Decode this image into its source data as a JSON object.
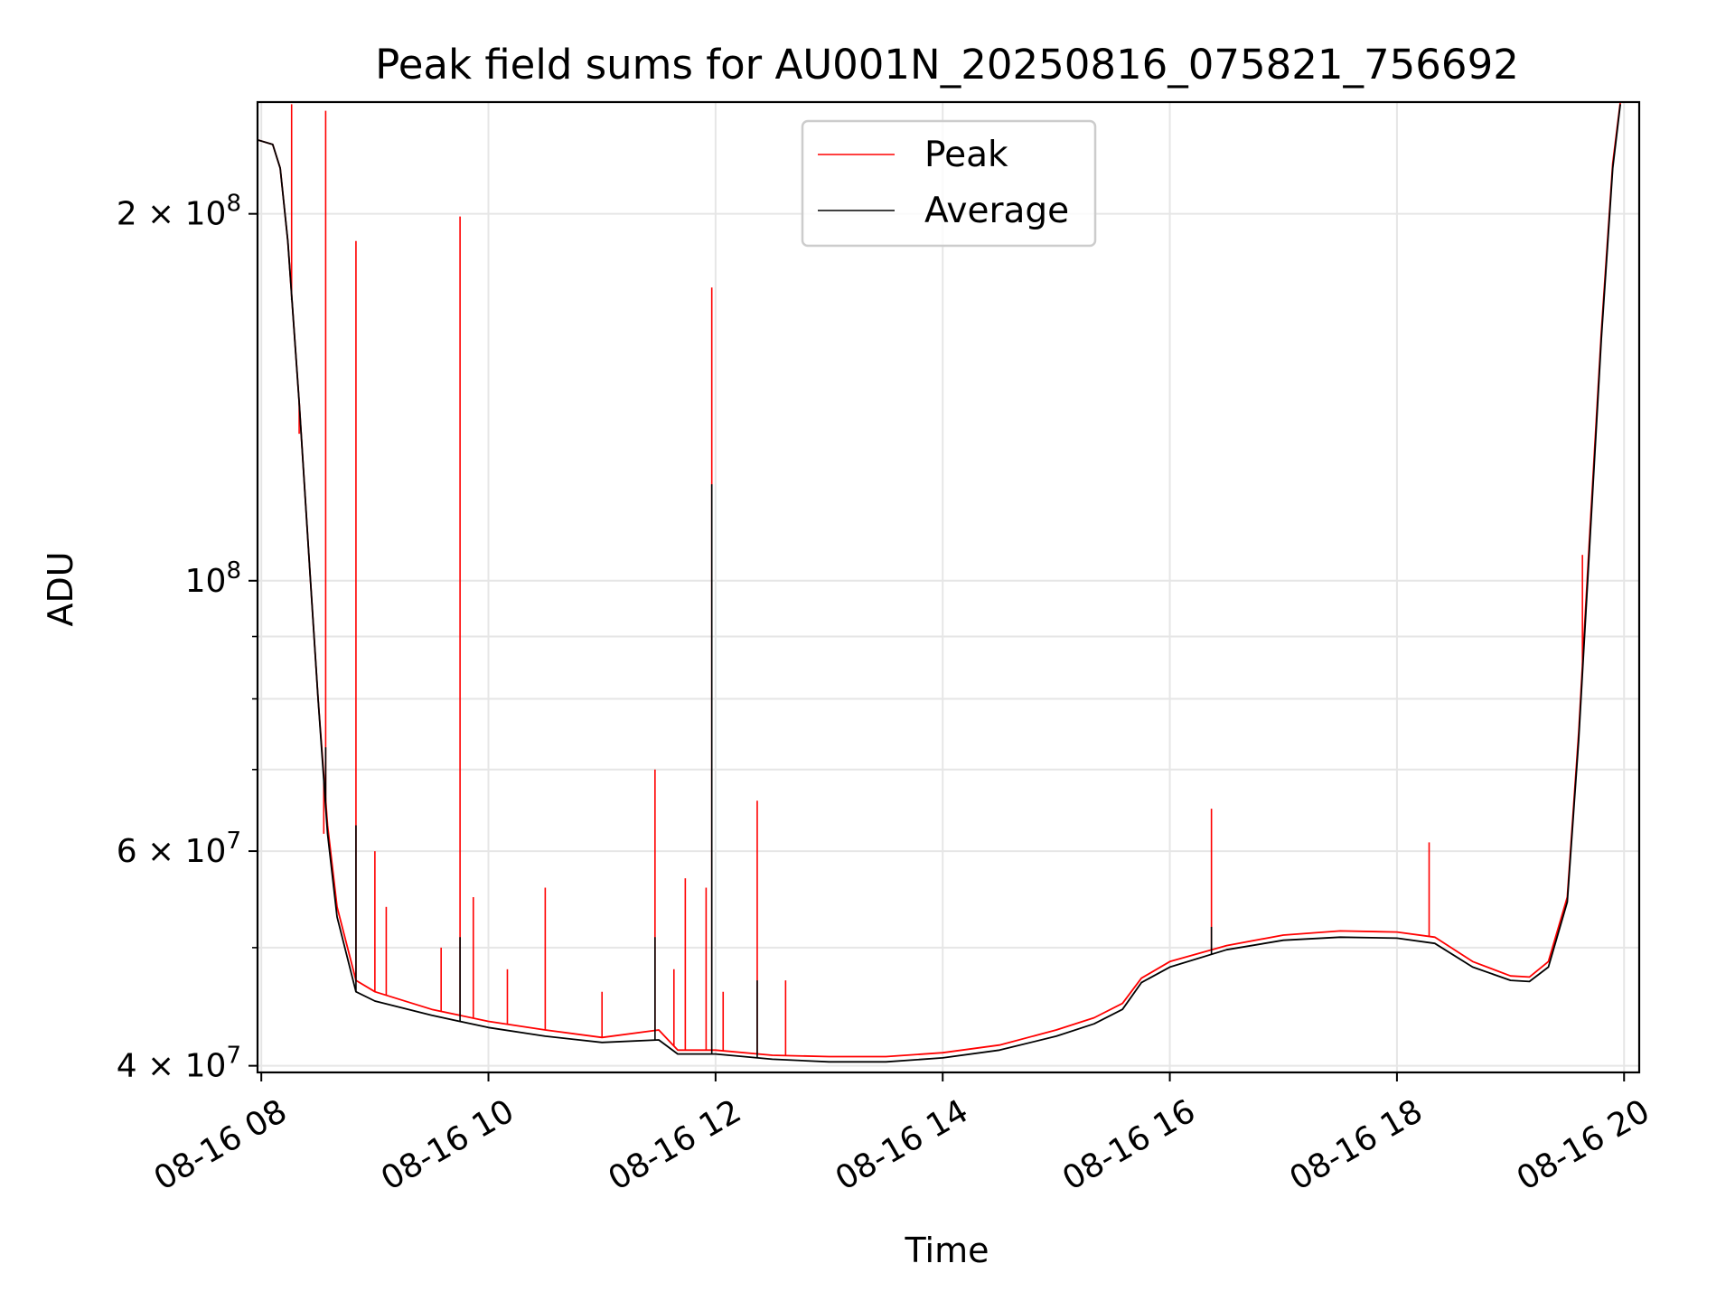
{
  "chart_data": {
    "type": "line",
    "title": "Peak field sums for AU001N_20250816_075821_756692",
    "xlabel": "Time",
    "ylabel": "ADU",
    "x_scale": "time",
    "y_scale": "log",
    "xlim": [
      "2025-08-16 07:58",
      "2025-08-16 20:08"
    ],
    "ylim": [
      39500000,
      247000000
    ],
    "grid": true,
    "legend_position": "top-center",
    "x_ticks": [
      {
        "value": "2025-08-16 08:00",
        "label": "08-16 08"
      },
      {
        "value": "2025-08-16 10:00",
        "label": "08-16 10"
      },
      {
        "value": "2025-08-16 12:00",
        "label": "08-16 12"
      },
      {
        "value": "2025-08-16 14:00",
        "label": "08-16 14"
      },
      {
        "value": "2025-08-16 16:00",
        "label": "08-16 16"
      },
      {
        "value": "2025-08-16 18:00",
        "label": "08-16 18"
      },
      {
        "value": "2025-08-16 20:00",
        "label": "08-16 20"
      }
    ],
    "y_ticks": [
      {
        "value": 40000000,
        "base": "4 × 10",
        "exp": "7"
      },
      {
        "value": 60000000,
        "base": "6 × 10",
        "exp": "7"
      },
      {
        "value": 100000000,
        "base": "10",
        "exp": "8"
      },
      {
        "value": 200000000,
        "base": "2 × 10",
        "exp": "8"
      }
    ],
    "y_minor_ticks": [
      50000000,
      70000000,
      80000000,
      90000000
    ],
    "series": [
      {
        "name": "Peak",
        "color": "#ff0000",
        "points": [
          [
            "2025-08-16 07:58",
            230000000
          ],
          [
            "2025-08-16 08:06",
            228000000
          ],
          [
            "2025-08-16 08:10",
            218000000
          ],
          [
            "2025-08-16 08:14",
            190000000
          ],
          [
            "2025-08-16 08:20",
            140000000
          ],
          [
            "2025-08-16 08:26",
            100000000
          ],
          [
            "2025-08-16 08:30",
            80000000
          ],
          [
            "2025-08-16 08:35",
            63000000
          ],
          [
            "2025-08-16 08:40",
            54000000
          ],
          [
            "2025-08-16 08:50",
            47000000
          ],
          [
            "2025-08-16 09:00",
            46000000
          ],
          [
            "2025-08-16 09:30",
            44500000
          ],
          [
            "2025-08-16 10:00",
            43500000
          ],
          [
            "2025-08-16 10:30",
            42800000
          ],
          [
            "2025-08-16 11:00",
            42200000
          ],
          [
            "2025-08-16 11:30",
            42800000
          ],
          [
            "2025-08-16 11:40",
            41200000
          ],
          [
            "2025-08-16 12:00",
            41200000
          ],
          [
            "2025-08-16 12:30",
            40800000
          ],
          [
            "2025-08-16 13:00",
            40700000
          ],
          [
            "2025-08-16 13:30",
            40700000
          ],
          [
            "2025-08-16 14:00",
            41000000
          ],
          [
            "2025-08-16 14:30",
            41600000
          ],
          [
            "2025-08-16 15:00",
            42800000
          ],
          [
            "2025-08-16 15:20",
            43800000
          ],
          [
            "2025-08-16 15:35",
            45000000
          ],
          [
            "2025-08-16 15:45",
            47200000
          ],
          [
            "2025-08-16 16:00",
            48700000
          ],
          [
            "2025-08-16 16:30",
            50200000
          ],
          [
            "2025-08-16 17:00",
            51200000
          ],
          [
            "2025-08-16 17:30",
            51600000
          ],
          [
            "2025-08-16 18:00",
            51500000
          ],
          [
            "2025-08-16 18:20",
            51000000
          ],
          [
            "2025-08-16 18:40",
            48700000
          ],
          [
            "2025-08-16 19:00",
            47400000
          ],
          [
            "2025-08-16 19:10",
            47300000
          ],
          [
            "2025-08-16 19:20",
            48700000
          ],
          [
            "2025-08-16 19:30",
            55000000
          ],
          [
            "2025-08-16 19:36",
            75000000
          ],
          [
            "2025-08-16 19:42",
            110000000
          ],
          [
            "2025-08-16 19:48",
            160000000
          ],
          [
            "2025-08-16 19:54",
            220000000
          ],
          [
            "2025-08-16 19:58",
            247000000
          ]
        ],
        "spikes": [
          [
            "2025-08-16 08:16",
            246000000
          ],
          [
            "2025-08-16 08:20",
            132000000
          ],
          [
            "2025-08-16 08:33",
            62000000
          ],
          [
            "2025-08-16 08:34",
            243000000
          ],
          [
            "2025-08-16 08:50",
            190000000
          ],
          [
            "2025-08-16 09:00",
            60000000
          ],
          [
            "2025-08-16 09:06",
            54000000
          ],
          [
            "2025-08-16 09:35",
            50000000
          ],
          [
            "2025-08-16 09:45",
            199000000
          ],
          [
            "2025-08-16 09:52",
            55000000
          ],
          [
            "2025-08-16 10:10",
            48000000
          ],
          [
            "2025-08-16 10:30",
            56000000
          ],
          [
            "2025-08-16 11:00",
            46000000
          ],
          [
            "2025-08-16 11:28",
            70000000
          ],
          [
            "2025-08-16 11:38",
            48000000
          ],
          [
            "2025-08-16 11:44",
            57000000
          ],
          [
            "2025-08-16 11:55",
            56000000
          ],
          [
            "2025-08-16 11:58",
            174000000
          ],
          [
            "2025-08-16 12:04",
            46000000
          ],
          [
            "2025-08-16 12:22",
            66000000
          ],
          [
            "2025-08-16 12:37",
            47000000
          ],
          [
            "2025-08-16 16:22",
            65000000
          ],
          [
            "2025-08-16 18:17",
            61000000
          ],
          [
            "2025-08-16 19:38",
            105000000
          ]
        ]
      },
      {
        "name": "Average",
        "color": "#000000",
        "points": [
          [
            "2025-08-16 07:58",
            230000000
          ],
          [
            "2025-08-16 08:06",
            228000000
          ],
          [
            "2025-08-16 08:10",
            218000000
          ],
          [
            "2025-08-16 08:14",
            190000000
          ],
          [
            "2025-08-16 08:20",
            140000000
          ],
          [
            "2025-08-16 08:26",
            100000000
          ],
          [
            "2025-08-16 08:30",
            80000000
          ],
          [
            "2025-08-16 08:35",
            62000000
          ],
          [
            "2025-08-16 08:40",
            53000000
          ],
          [
            "2025-08-16 08:50",
            46000000
          ],
          [
            "2025-08-16 09:00",
            45200000
          ],
          [
            "2025-08-16 09:30",
            44000000
          ],
          [
            "2025-08-16 10:00",
            43000000
          ],
          [
            "2025-08-16 10:30",
            42300000
          ],
          [
            "2025-08-16 11:00",
            41800000
          ],
          [
            "2025-08-16 11:30",
            42000000
          ],
          [
            "2025-08-16 11:40",
            40900000
          ],
          [
            "2025-08-16 12:00",
            40900000
          ],
          [
            "2025-08-16 12:30",
            40500000
          ],
          [
            "2025-08-16 13:00",
            40300000
          ],
          [
            "2025-08-16 13:30",
            40300000
          ],
          [
            "2025-08-16 14:00",
            40600000
          ],
          [
            "2025-08-16 14:30",
            41200000
          ],
          [
            "2025-08-16 15:00",
            42300000
          ],
          [
            "2025-08-16 15:20",
            43300000
          ],
          [
            "2025-08-16 15:35",
            44500000
          ],
          [
            "2025-08-16 15:45",
            46800000
          ],
          [
            "2025-08-16 16:00",
            48200000
          ],
          [
            "2025-08-16 16:30",
            49800000
          ],
          [
            "2025-08-16 17:00",
            50700000
          ],
          [
            "2025-08-16 17:30",
            51000000
          ],
          [
            "2025-08-16 18:00",
            50900000
          ],
          [
            "2025-08-16 18:20",
            50400000
          ],
          [
            "2025-08-16 18:40",
            48200000
          ],
          [
            "2025-08-16 19:00",
            47000000
          ],
          [
            "2025-08-16 19:10",
            46900000
          ],
          [
            "2025-08-16 19:20",
            48200000
          ],
          [
            "2025-08-16 19:30",
            54500000
          ],
          [
            "2025-08-16 19:36",
            74000000
          ],
          [
            "2025-08-16 19:42",
            108000000
          ],
          [
            "2025-08-16 19:48",
            158000000
          ],
          [
            "2025-08-16 19:54",
            218000000
          ],
          [
            "2025-08-16 19:58",
            246000000
          ]
        ],
        "spikes": [
          [
            "2025-08-16 08:16",
            170000000
          ],
          [
            "2025-08-16 08:34",
            73000000
          ],
          [
            "2025-08-16 08:50",
            63000000
          ],
          [
            "2025-08-16 09:45",
            51000000
          ],
          [
            "2025-08-16 11:28",
            51000000
          ],
          [
            "2025-08-16 11:58",
            120000000
          ],
          [
            "2025-08-16 12:22",
            47000000
          ],
          [
            "2025-08-16 16:22",
            52000000
          ]
        ]
      }
    ]
  }
}
